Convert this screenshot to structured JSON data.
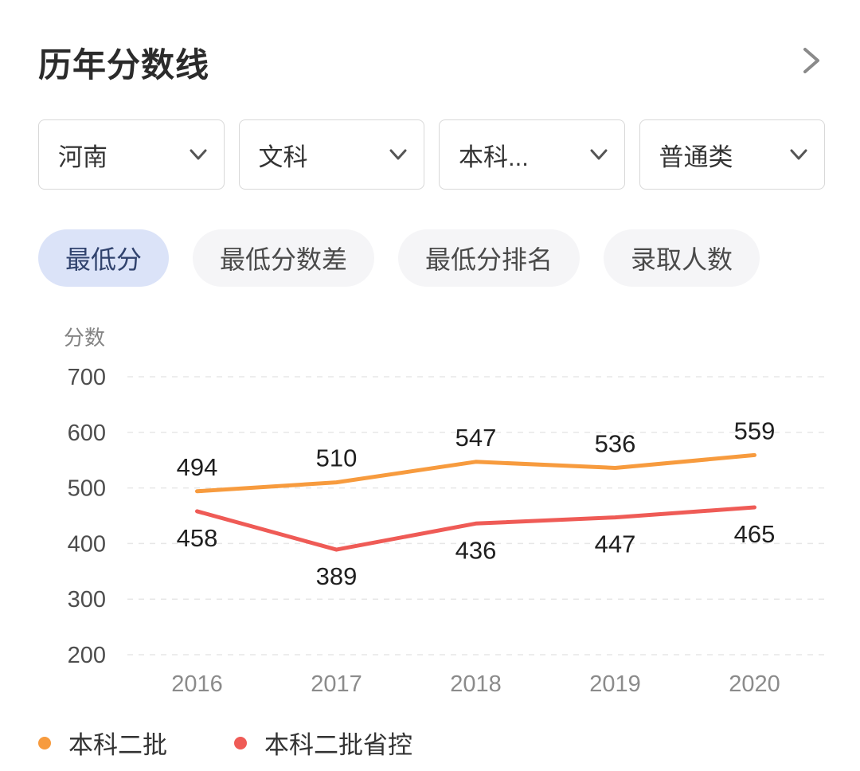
{
  "header": {
    "title": "历年分数线"
  },
  "icons": {
    "header_chevron": "chevron-right",
    "dropdown_chevron": "chevron-down"
  },
  "filters": {
    "items": [
      {
        "value": "河南"
      },
      {
        "value": "文科"
      },
      {
        "value": "本科..."
      },
      {
        "value": "普通类"
      }
    ]
  },
  "tabs": {
    "items": [
      {
        "label": "最低分",
        "active": true
      },
      {
        "label": "最低分数差",
        "active": false
      },
      {
        "label": "最低分排名",
        "active": false
      },
      {
        "label": "录取人数",
        "active": false
      }
    ]
  },
  "chart_data": {
    "type": "line",
    "title": "",
    "ylabel": "分数",
    "xlabel": "",
    "categories": [
      "2016",
      "2017",
      "2018",
      "2019",
      "2020"
    ],
    "series": [
      {
        "name": "本科二批",
        "color": "#f79b3e",
        "values": [
          494,
          510,
          547,
          536,
          559
        ],
        "label_position": "above"
      },
      {
        "name": "本科二批省控",
        "color": "#ef5b56",
        "values": [
          458,
          389,
          436,
          447,
          465
        ],
        "label_position": "below"
      }
    ],
    "ylim": [
      200,
      700
    ],
    "yticks": [
      700,
      600,
      500,
      400,
      300,
      200
    ],
    "grid": "horizontal-dashed",
    "legend_position": "bottom"
  },
  "colors": {
    "active_tab_bg": "#dbe3f8",
    "inactive_tab_bg": "#f5f5f7",
    "series_orange": "#f79b3e",
    "series_red": "#ef5b56"
  }
}
